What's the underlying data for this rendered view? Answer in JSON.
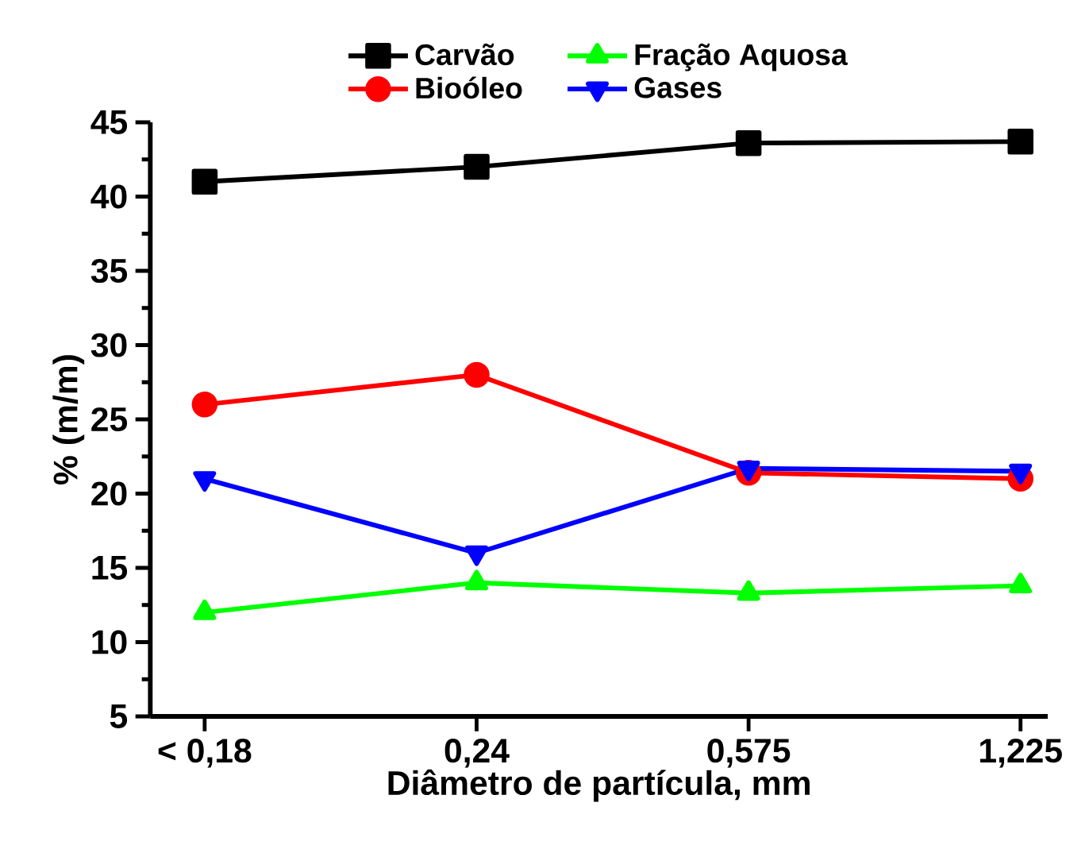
{
  "chart_data": {
    "type": "line",
    "xlabel": "Diâmetro de partícula, mm",
    "ylabel": "% (m/m)",
    "categories": [
      "< 0,18",
      "0,24",
      "0,575",
      "1,225"
    ],
    "ylim": [
      5,
      45
    ],
    "yticks": [
      5,
      10,
      15,
      20,
      25,
      30,
      35,
      40,
      45
    ],
    "grid": false,
    "legend": "top",
    "line_style": "solid",
    "series": [
      {
        "name": "Carvão",
        "color": "#000000",
        "marker": "square",
        "values": [
          41,
          42,
          43.6,
          43.7
        ]
      },
      {
        "name": "Fração Aquosa",
        "color": "#00ff00",
        "marker": "triangle",
        "values": [
          12,
          14,
          13.3,
          13.8
        ]
      },
      {
        "name": "Bioóleo",
        "color": "#ff0000",
        "marker": "circle",
        "values": [
          26,
          28,
          21.4,
          21
        ]
      },
      {
        "name": "Gases",
        "color": "#0000ff",
        "marker": "triangle down",
        "values": [
          21,
          16,
          21.7,
          21.5
        ]
      }
    ]
  }
}
